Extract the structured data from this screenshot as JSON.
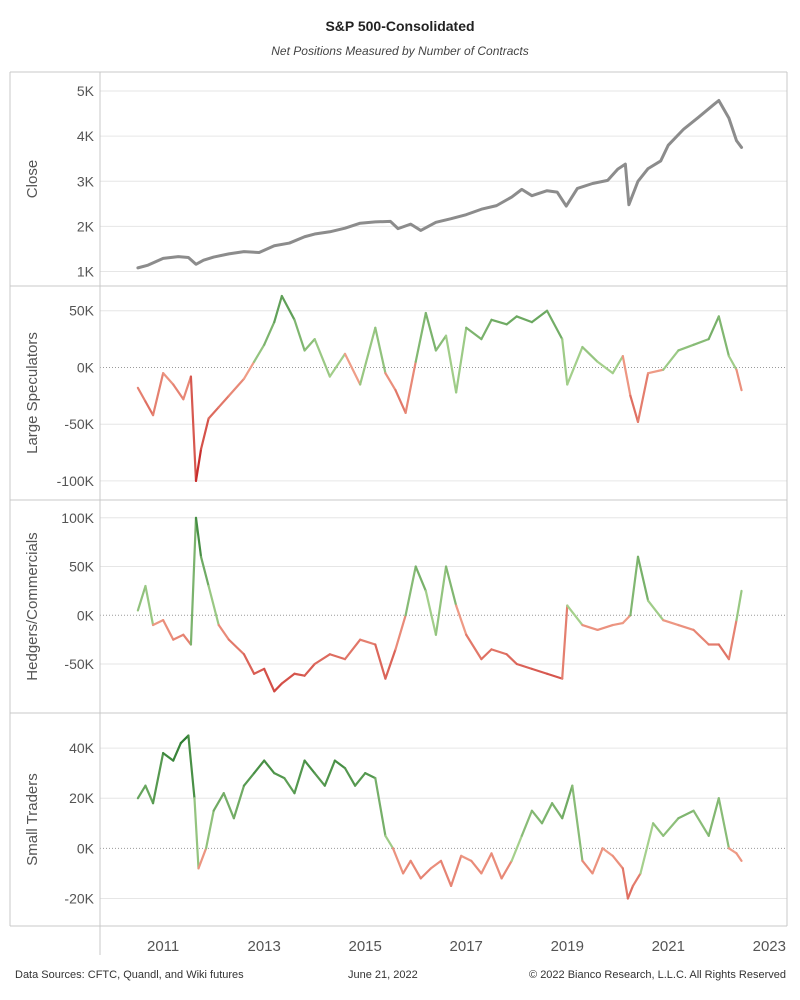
{
  "header": {
    "title": "S&P 500-Consolidated",
    "subtitle": "Net Positions Measured by Number of Contracts"
  },
  "footer": {
    "sources": "Data Sources: CFTC, Quandl, and Wiki futures",
    "date": "June 21, 2022",
    "copyright": "© 2022 Bianco Research, L.L.C. All Rights Reserved"
  },
  "colors": {
    "close_line": "#8c8c8c",
    "positive_dark": "#2e7d32",
    "positive_light": "#a5d08c",
    "negative_light": "#f0a08a",
    "negative_dark": "#c62828",
    "grid": "#e6e6e6",
    "zero_line": "#9a9a9a",
    "panel_border": "#c8c8c8"
  },
  "chart_data": [
    {
      "type": "line",
      "ylabel": "Close",
      "yticks": [
        1000,
        2000,
        3000,
        4000,
        5000
      ],
      "ytick_labels": [
        "1K",
        "2K",
        "3K",
        "4K",
        "5K"
      ],
      "ylim": [
        900,
        5200
      ],
      "color_mode": "solid",
      "x": [
        2010.5,
        2010.7,
        2011.0,
        2011.3,
        2011.5,
        2011.65,
        2011.8,
        2012.0,
        2012.3,
        2012.6,
        2012.9,
        2013.2,
        2013.5,
        2013.8,
        2014.0,
        2014.3,
        2014.6,
        2014.9,
        2015.2,
        2015.5,
        2015.65,
        2015.9,
        2016.1,
        2016.4,
        2016.7,
        2017.0,
        2017.3,
        2017.6,
        2017.9,
        2018.1,
        2018.3,
        2018.6,
        2018.8,
        2018.98,
        2019.2,
        2019.5,
        2019.8,
        2020.0,
        2020.15,
        2020.22,
        2020.4,
        2020.6,
        2020.85,
        2021.0,
        2021.3,
        2021.6,
        2021.9,
        2022.0,
        2022.2,
        2022.35,
        2022.45
      ],
      "values": [
        1080,
        1140,
        1290,
        1330,
        1310,
        1160,
        1250,
        1320,
        1390,
        1440,
        1420,
        1570,
        1630,
        1770,
        1830,
        1880,
        1960,
        2070,
        2100,
        2110,
        1950,
        2050,
        1910,
        2090,
        2170,
        2260,
        2380,
        2460,
        2650,
        2820,
        2680,
        2790,
        2760,
        2450,
        2840,
        2950,
        3020,
        3270,
        3380,
        2480,
        3000,
        3280,
        3450,
        3800,
        4150,
        4420,
        4700,
        4790,
        4400,
        3900,
        3750
      ]
    },
    {
      "type": "line",
      "ylabel": "Large Speculators",
      "yticks": [
        -100000,
        -50000,
        0,
        50000
      ],
      "ytick_labels": [
        "-100K",
        "-50K",
        "0K",
        "50K"
      ],
      "ylim": [
        -108000,
        63000
      ],
      "color_mode": "diverging",
      "color_extent": 90000,
      "x": [
        2010.5,
        2010.65,
        2010.8,
        2011.0,
        2011.2,
        2011.4,
        2011.55,
        2011.65,
        2011.75,
        2011.9,
        2012.1,
        2012.3,
        2012.6,
        2012.8,
        2013.0,
        2013.2,
        2013.35,
        2013.6,
        2013.8,
        2014.0,
        2014.3,
        2014.6,
        2014.9,
        2015.2,
        2015.4,
        2015.6,
        2015.8,
        2016.0,
        2016.2,
        2016.4,
        2016.6,
        2016.8,
        2017.0,
        2017.3,
        2017.5,
        2017.8,
        2018.0,
        2018.3,
        2018.6,
        2018.9,
        2019.0,
        2019.3,
        2019.6,
        2019.9,
        2020.1,
        2020.25,
        2020.4,
        2020.6,
        2020.9,
        2021.2,
        2021.5,
        2021.8,
        2022.0,
        2022.2,
        2022.35,
        2022.45
      ],
      "values": [
        -18000,
        -30000,
        -42000,
        -5000,
        -15000,
        -28000,
        -8000,
        -100000,
        -72000,
        -45000,
        -35000,
        -25000,
        -10000,
        5000,
        20000,
        40000,
        63000,
        42000,
        15000,
        25000,
        -8000,
        12000,
        -15000,
        35000,
        -5000,
        -20000,
        -40000,
        5000,
        48000,
        15000,
        28000,
        -22000,
        35000,
        25000,
        42000,
        38000,
        45000,
        40000,
        50000,
        25000,
        -15000,
        18000,
        5000,
        -5000,
        10000,
        -25000,
        -48000,
        -5000,
        -2000,
        15000,
        20000,
        25000,
        45000,
        10000,
        -2000,
        -20000
      ]
    },
    {
      "type": "line",
      "ylabel": "Hedgers/Commercials",
      "yticks": [
        -50000,
        0,
        50000,
        100000
      ],
      "ytick_labels": [
        "-50K",
        "0K",
        "50K",
        "100K"
      ],
      "ylim": [
        -90000,
        108000
      ],
      "color_mode": "diverging",
      "color_extent": 100000,
      "x": [
        2010.5,
        2010.65,
        2010.8,
        2011.0,
        2011.2,
        2011.4,
        2011.55,
        2011.65,
        2011.75,
        2011.9,
        2012.1,
        2012.3,
        2012.6,
        2012.8,
        2013.0,
        2013.2,
        2013.35,
        2013.6,
        2013.8,
        2014.0,
        2014.3,
        2014.6,
        2014.9,
        2015.2,
        2015.4,
        2015.6,
        2015.8,
        2016.0,
        2016.2,
        2016.4,
        2016.6,
        2016.8,
        2017.0,
        2017.3,
        2017.5,
        2017.8,
        2018.0,
        2018.3,
        2018.6,
        2018.9,
        2019.0,
        2019.3,
        2019.6,
        2019.9,
        2020.1,
        2020.25,
        2020.4,
        2020.6,
        2020.9,
        2021.2,
        2021.5,
        2021.8,
        2022.0,
        2022.2,
        2022.35,
        2022.45
      ],
      "values": [
        5000,
        30000,
        -10000,
        -5000,
        -25000,
        -20000,
        -30000,
        100000,
        60000,
        30000,
        -10000,
        -25000,
        -40000,
        -60000,
        -55000,
        -78000,
        -70000,
        -60000,
        -62000,
        -50000,
        -40000,
        -45000,
        -25000,
        -30000,
        -65000,
        -35000,
        0,
        50000,
        25000,
        -20000,
        50000,
        10000,
        -20000,
        -45000,
        -35000,
        -40000,
        -50000,
        -55000,
        -60000,
        -65000,
        10000,
        -10000,
        -15000,
        -10000,
        -8000,
        0,
        60000,
        15000,
        -5000,
        -10000,
        -15000,
        -30000,
        -30000,
        -45000,
        -5000,
        25000
      ]
    },
    {
      "type": "line",
      "ylabel": "Small Traders",
      "yticks": [
        -20000,
        0,
        20000,
        40000
      ],
      "ytick_labels": [
        "-20K",
        "0K",
        "20K",
        "40K"
      ],
      "ylim": [
        -27000,
        50000
      ],
      "color_mode": "diverging",
      "color_extent": 42000,
      "x": [
        2010.5,
        2010.65,
        2010.8,
        2011.0,
        2011.2,
        2011.35,
        2011.5,
        2011.62,
        2011.7,
        2011.85,
        2012.0,
        2012.2,
        2012.4,
        2012.6,
        2012.8,
        2013.0,
        2013.2,
        2013.4,
        2013.6,
        2013.8,
        2014.0,
        2014.2,
        2014.4,
        2014.6,
        2014.8,
        2015.0,
        2015.2,
        2015.4,
        2015.55,
        2015.75,
        2015.9,
        2016.1,
        2016.3,
        2016.5,
        2016.7,
        2016.9,
        2017.1,
        2017.3,
        2017.5,
        2017.7,
        2017.9,
        2018.1,
        2018.3,
        2018.5,
        2018.7,
        2018.9,
        2019.1,
        2019.3,
        2019.5,
        2019.7,
        2019.9,
        2020.1,
        2020.2,
        2020.3,
        2020.45,
        2020.7,
        2020.9,
        2021.2,
        2021.5,
        2021.8,
        2022.0,
        2022.2,
        2022.35,
        2022.45
      ],
      "values": [
        20000,
        25000,
        18000,
        38000,
        35000,
        42000,
        45000,
        20000,
        -8000,
        0,
        15000,
        22000,
        12000,
        25000,
        30000,
        35000,
        30000,
        28000,
        22000,
        35000,
        30000,
        25000,
        35000,
        32000,
        25000,
        30000,
        28000,
        5000,
        0,
        -10000,
        -5000,
        -12000,
        -8000,
        -5000,
        -15000,
        -3000,
        -5000,
        -10000,
        -2000,
        -12000,
        -5000,
        5000,
        15000,
        10000,
        18000,
        12000,
        25000,
        -5000,
        -10000,
        0,
        -3000,
        -8000,
        -20000,
        -15000,
        -10000,
        10000,
        5000,
        12000,
        15000,
        5000,
        20000,
        0,
        -2000,
        -5000
      ]
    }
  ],
  "xaxis": {
    "ticks": [
      2011,
      2013,
      2015,
      2017,
      2019,
      2021,
      2023
    ],
    "tick_labels": [
      "2011",
      "2013",
      "2015",
      "2017",
      "2019",
      "2021",
      "2023"
    ],
    "xlim": [
      2009.75,
      2023.35
    ]
  }
}
